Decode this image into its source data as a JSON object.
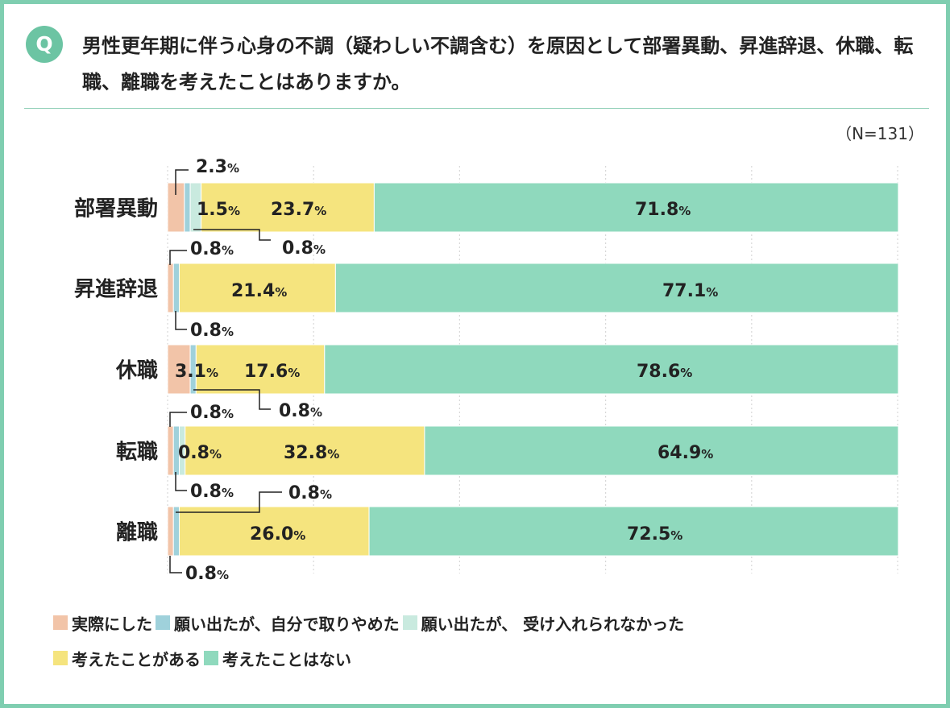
{
  "question": {
    "badge": "Q",
    "text": "男性更年期に伴う心身の不調（疑わしい不調含む）を原因として部署異動、昇進辞退、休職、転職、離職を考えたことはありますか。",
    "sample_size": "（N=131）"
  },
  "chart_data": {
    "type": "bar",
    "orientation": "horizontal-stacked-100",
    "categories": [
      "部署異動",
      "昇進辞退",
      "休職",
      "転職",
      "離職"
    ],
    "series": [
      {
        "name": "実際にした",
        "color": "#f2c4a8",
        "values": [
          2.3,
          0.8,
          3.1,
          0.8,
          0.8
        ]
      },
      {
        "name": "願い出たが、自分で取りやめた",
        "color": "#9fd1db",
        "values": [
          0.8,
          0.8,
          0.8,
          0.8,
          0.8
        ]
      },
      {
        "name": "願い出たが、 受け入れられなかった",
        "color": "#c9eadf",
        "values": [
          1.5,
          0.0,
          0.0,
          0.8,
          0.0
        ]
      },
      {
        "name": "考えたことがある",
        "color": "#f5e47e",
        "values": [
          23.7,
          21.4,
          17.6,
          32.8,
          26.0
        ]
      },
      {
        "name": "考えたことはない",
        "color": "#8fd9bd",
        "values": [
          71.8,
          77.1,
          78.6,
          64.9,
          72.5
        ]
      }
    ],
    "value_labels": [
      [
        "2.3",
        "0.8",
        "1.5",
        "23.7",
        "71.8"
      ],
      [
        "0.8",
        "0.8",
        "",
        "21.4",
        "77.1"
      ],
      [
        "3.1",
        "0.8",
        "",
        "17.6",
        "78.6"
      ],
      [
        "0.8",
        "0.8",
        "0.8",
        "32.8",
        "64.9"
      ],
      [
        "0.8",
        "0.8",
        "",
        "26.0",
        "72.5"
      ]
    ],
    "unit": "%",
    "xlim": [
      0,
      100
    ],
    "gridlines": [
      0,
      20,
      40,
      60,
      80,
      100
    ],
    "legend_position": "bottom"
  },
  "legend": {
    "rows": [
      [
        0,
        1,
        2
      ],
      [
        3,
        4
      ]
    ]
  }
}
